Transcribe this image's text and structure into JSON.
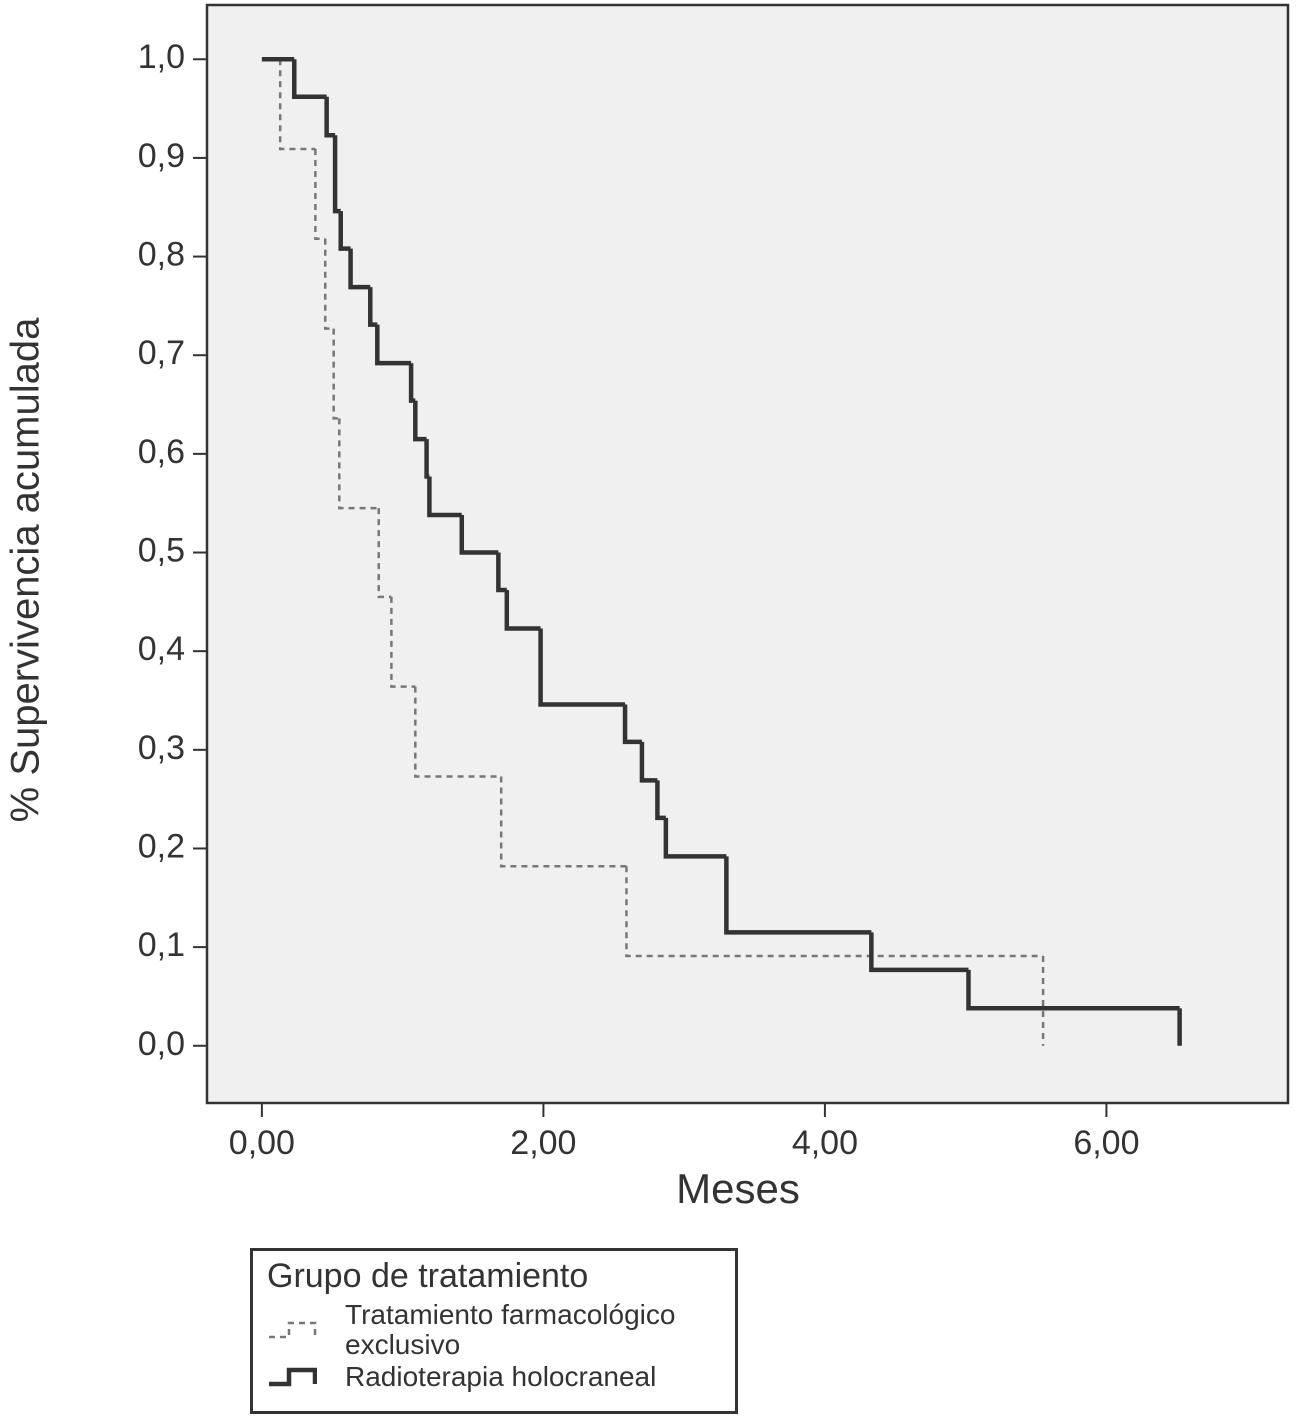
{
  "chart_data": {
    "type": "step",
    "x_label": "Meses",
    "y_label": "% Supervivencia acumulada",
    "xlim": [
      -0.39,
      7.29
    ],
    "ylim": [
      -0.058,
      1.055
    ],
    "xticks": [
      {
        "value": 0,
        "label": "0,00"
      },
      {
        "value": 2,
        "label": "2,00"
      },
      {
        "value": 4,
        "label": "4,00"
      },
      {
        "value": 6,
        "label": "6,00"
      }
    ],
    "yticks": [
      {
        "value": 0,
        "label": "0,0"
      },
      {
        "value": 0.1,
        "label": "0,1"
      },
      {
        "value": 0.2,
        "label": "0,2"
      },
      {
        "value": 0.3,
        "label": "0,3"
      },
      {
        "value": 0.4,
        "label": "0,4"
      },
      {
        "value": 0.5,
        "label": "0,5"
      },
      {
        "value": 0.6,
        "label": "0,6"
      },
      {
        "value": 0.7,
        "label": "0,7"
      },
      {
        "value": 0.8,
        "label": "0,8"
      },
      {
        "value": 0.9,
        "label": "0,9"
      },
      {
        "value": 1,
        "label": "1,0"
      }
    ],
    "legend_title": "Grupo de tratamiento",
    "series": [
      {
        "name": "Tratamiento farmacológico exclusivo",
        "color": "#777777",
        "dashed": true,
        "x": [
          0,
          0.13,
          0.38,
          0.45,
          0.51,
          0.55,
          0.83,
          0.92,
          1.09,
          1.7,
          2.59,
          5.55
        ],
        "values": [
          1,
          0.909,
          0.818,
          0.727,
          0.636,
          0.545,
          0.455,
          0.364,
          0.273,
          0.182,
          0.091,
          0
        ]
      },
      {
        "name": "Radioterapia holocraneal",
        "color": "#333333",
        "dashed": false,
        "x": [
          0,
          0.23,
          0.46,
          0.52,
          0.56,
          0.63,
          0.77,
          0.82,
          1.06,
          1.09,
          1.17,
          1.19,
          1.42,
          1.68,
          1.74,
          1.98,
          2.58,
          2.7,
          2.81,
          2.87,
          3.3,
          4.33,
          5.02,
          6.52
        ],
        "values": [
          1,
          0.962,
          0.923,
          0.846,
          0.808,
          0.769,
          0.731,
          0.692,
          0.654,
          0.615,
          0.577,
          0.538,
          0.5,
          0.462,
          0.423,
          0.346,
          0.308,
          0.269,
          0.231,
          0.192,
          0.115,
          0.077,
          0.038,
          0
        ]
      }
    ]
  }
}
